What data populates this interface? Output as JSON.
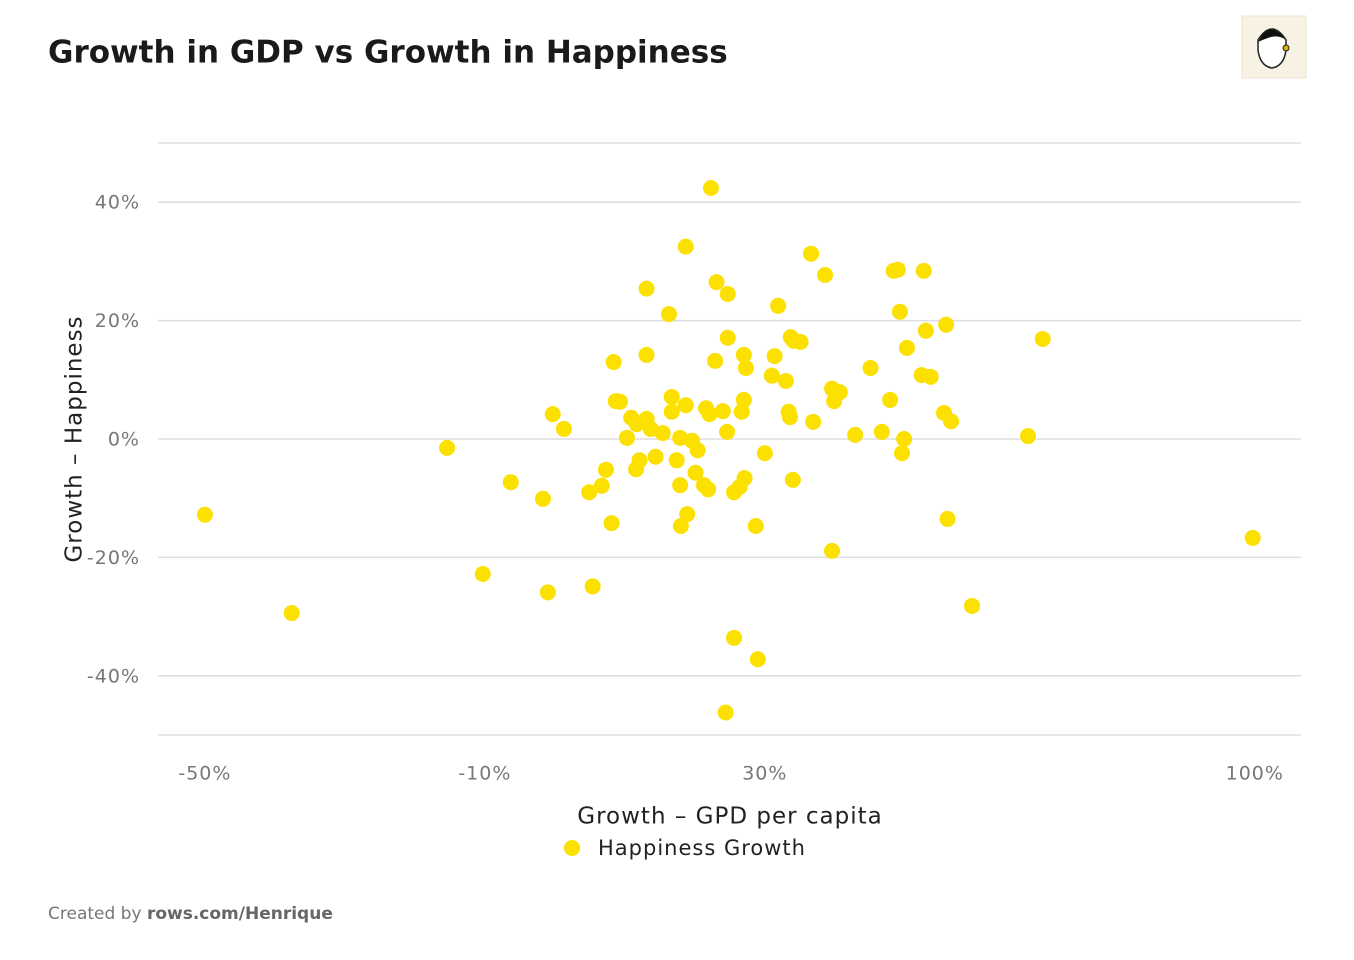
{
  "chart_data": {
    "type": "scatter",
    "title": "Growth in GDP vs Growth in Happiness",
    "x_label": "Growth – GPD per capita",
    "y_label": "Growth – Happiness",
    "x": [
      -50,
      -37.6,
      -15.4,
      -10.3,
      -6.3,
      -1.7,
      -1.0,
      -0.3,
      1.3,
      4.9,
      5.4,
      6.7,
      7.3,
      8.1,
      8.4,
      8.7,
      9.3,
      10.3,
      10.9,
      11.6,
      11.7,
      12.1,
      13.1,
      13.1,
      13.1,
      13.7,
      14.4,
      15.4,
      16.3,
      16.7,
      16.7,
      17.4,
      17.9,
      17.9,
      18.0,
      18.7,
      18.7,
      18.9,
      19.6,
      20.1,
      20.4,
      21.3,
      21.6,
      21.9,
      22.1,
      22.3,
      22.9,
      23.1,
      24.0,
      24.4,
      24.6,
      24.7,
      24.7,
      25.6,
      25.6,
      26.4,
      26.7,
      27.0,
      27.0,
      27.1,
      27.3,
      28.7,
      29.0,
      30.0,
      31.0,
      31.4,
      31.9,
      33.0,
      33.4,
      33.6,
      33.7,
      34.0,
      34.1,
      35.1,
      36.6,
      36.9,
      38.6,
      39.6,
      39.6,
      39.9,
      40.7,
      42.9,
      45.1,
      46.7,
      47.9,
      48.4,
      49.0,
      49.3,
      49.6,
      49.9,
      50.3,
      52.4,
      52.7,
      53.0,
      53.7,
      55.6,
      55.9,
      56.1,
      56.6,
      59.6,
      67.6,
      69.7,
      99.7
    ],
    "series": [
      {
        "name": "Happiness Growth",
        "color": "#fbe000",
        "values": [
          -12.8,
          -29.4,
          -1.5,
          -22.8,
          -7.3,
          -10.1,
          -25.9,
          4.2,
          1.7,
          -9.0,
          -24.9,
          -7.9,
          -5.2,
          -14.2,
          13.0,
          6.4,
          6.3,
          0.2,
          3.6,
          -5.1,
          2.5,
          -3.6,
          25.4,
          14.2,
          3.4,
          1.7,
          -3.0,
          1.0,
          21.1,
          7.1,
          4.6,
          -3.6,
          -7.8,
          0.2,
          -14.7,
          32.5,
          5.7,
          -12.7,
          -0.3,
          -5.7,
          -1.9,
          -7.8,
          5.2,
          -8.5,
          4.2,
          42.4,
          13.2,
          26.5,
          4.7,
          -46.2,
          1.2,
          24.5,
          17.1,
          -9.0,
          -33.6,
          -8.1,
          4.6,
          6.6,
          14.2,
          -6.6,
          12.0,
          -14.7,
          -37.2,
          -2.4,
          10.7,
          14.0,
          22.5,
          9.8,
          4.6,
          3.7,
          17.2,
          -6.9,
          16.6,
          16.4,
          31.3,
          2.9,
          27.7,
          8.5,
          -18.9,
          6.4,
          7.9,
          0.7,
          12.0,
          1.2,
          6.6,
          28.4,
          28.6,
          21.5,
          -2.4,
          0,
          15.4,
          10.8,
          28.4,
          18.3,
          10.5,
          4.4,
          19.3,
          -13.5,
          3.0,
          -28.2,
          0.5,
          16.9,
          -16.7
        ]
      }
    ],
    "xlim": [
      -56.7,
      106.6
    ],
    "xticks": [
      {
        "value": -50,
        "label": "-50%"
      },
      {
        "value": -10,
        "label": "-10%"
      },
      {
        "value": 30,
        "label": "30%"
      },
      {
        "value": 100,
        "label": "100%"
      }
    ],
    "ylim": [
      -50,
      50
    ],
    "yticks": [
      {
        "value": -40,
        "label": "-40%"
      },
      {
        "value": -20,
        "label": "-20%"
      },
      {
        "value": 0,
        "label": "0%"
      },
      {
        "value": 20,
        "label": "20%"
      },
      {
        "value": 40,
        "label": "40%"
      }
    ],
    "grid": true
  },
  "footer": {
    "prefix": "Created by",
    "link": "rows.com/Henrique"
  }
}
